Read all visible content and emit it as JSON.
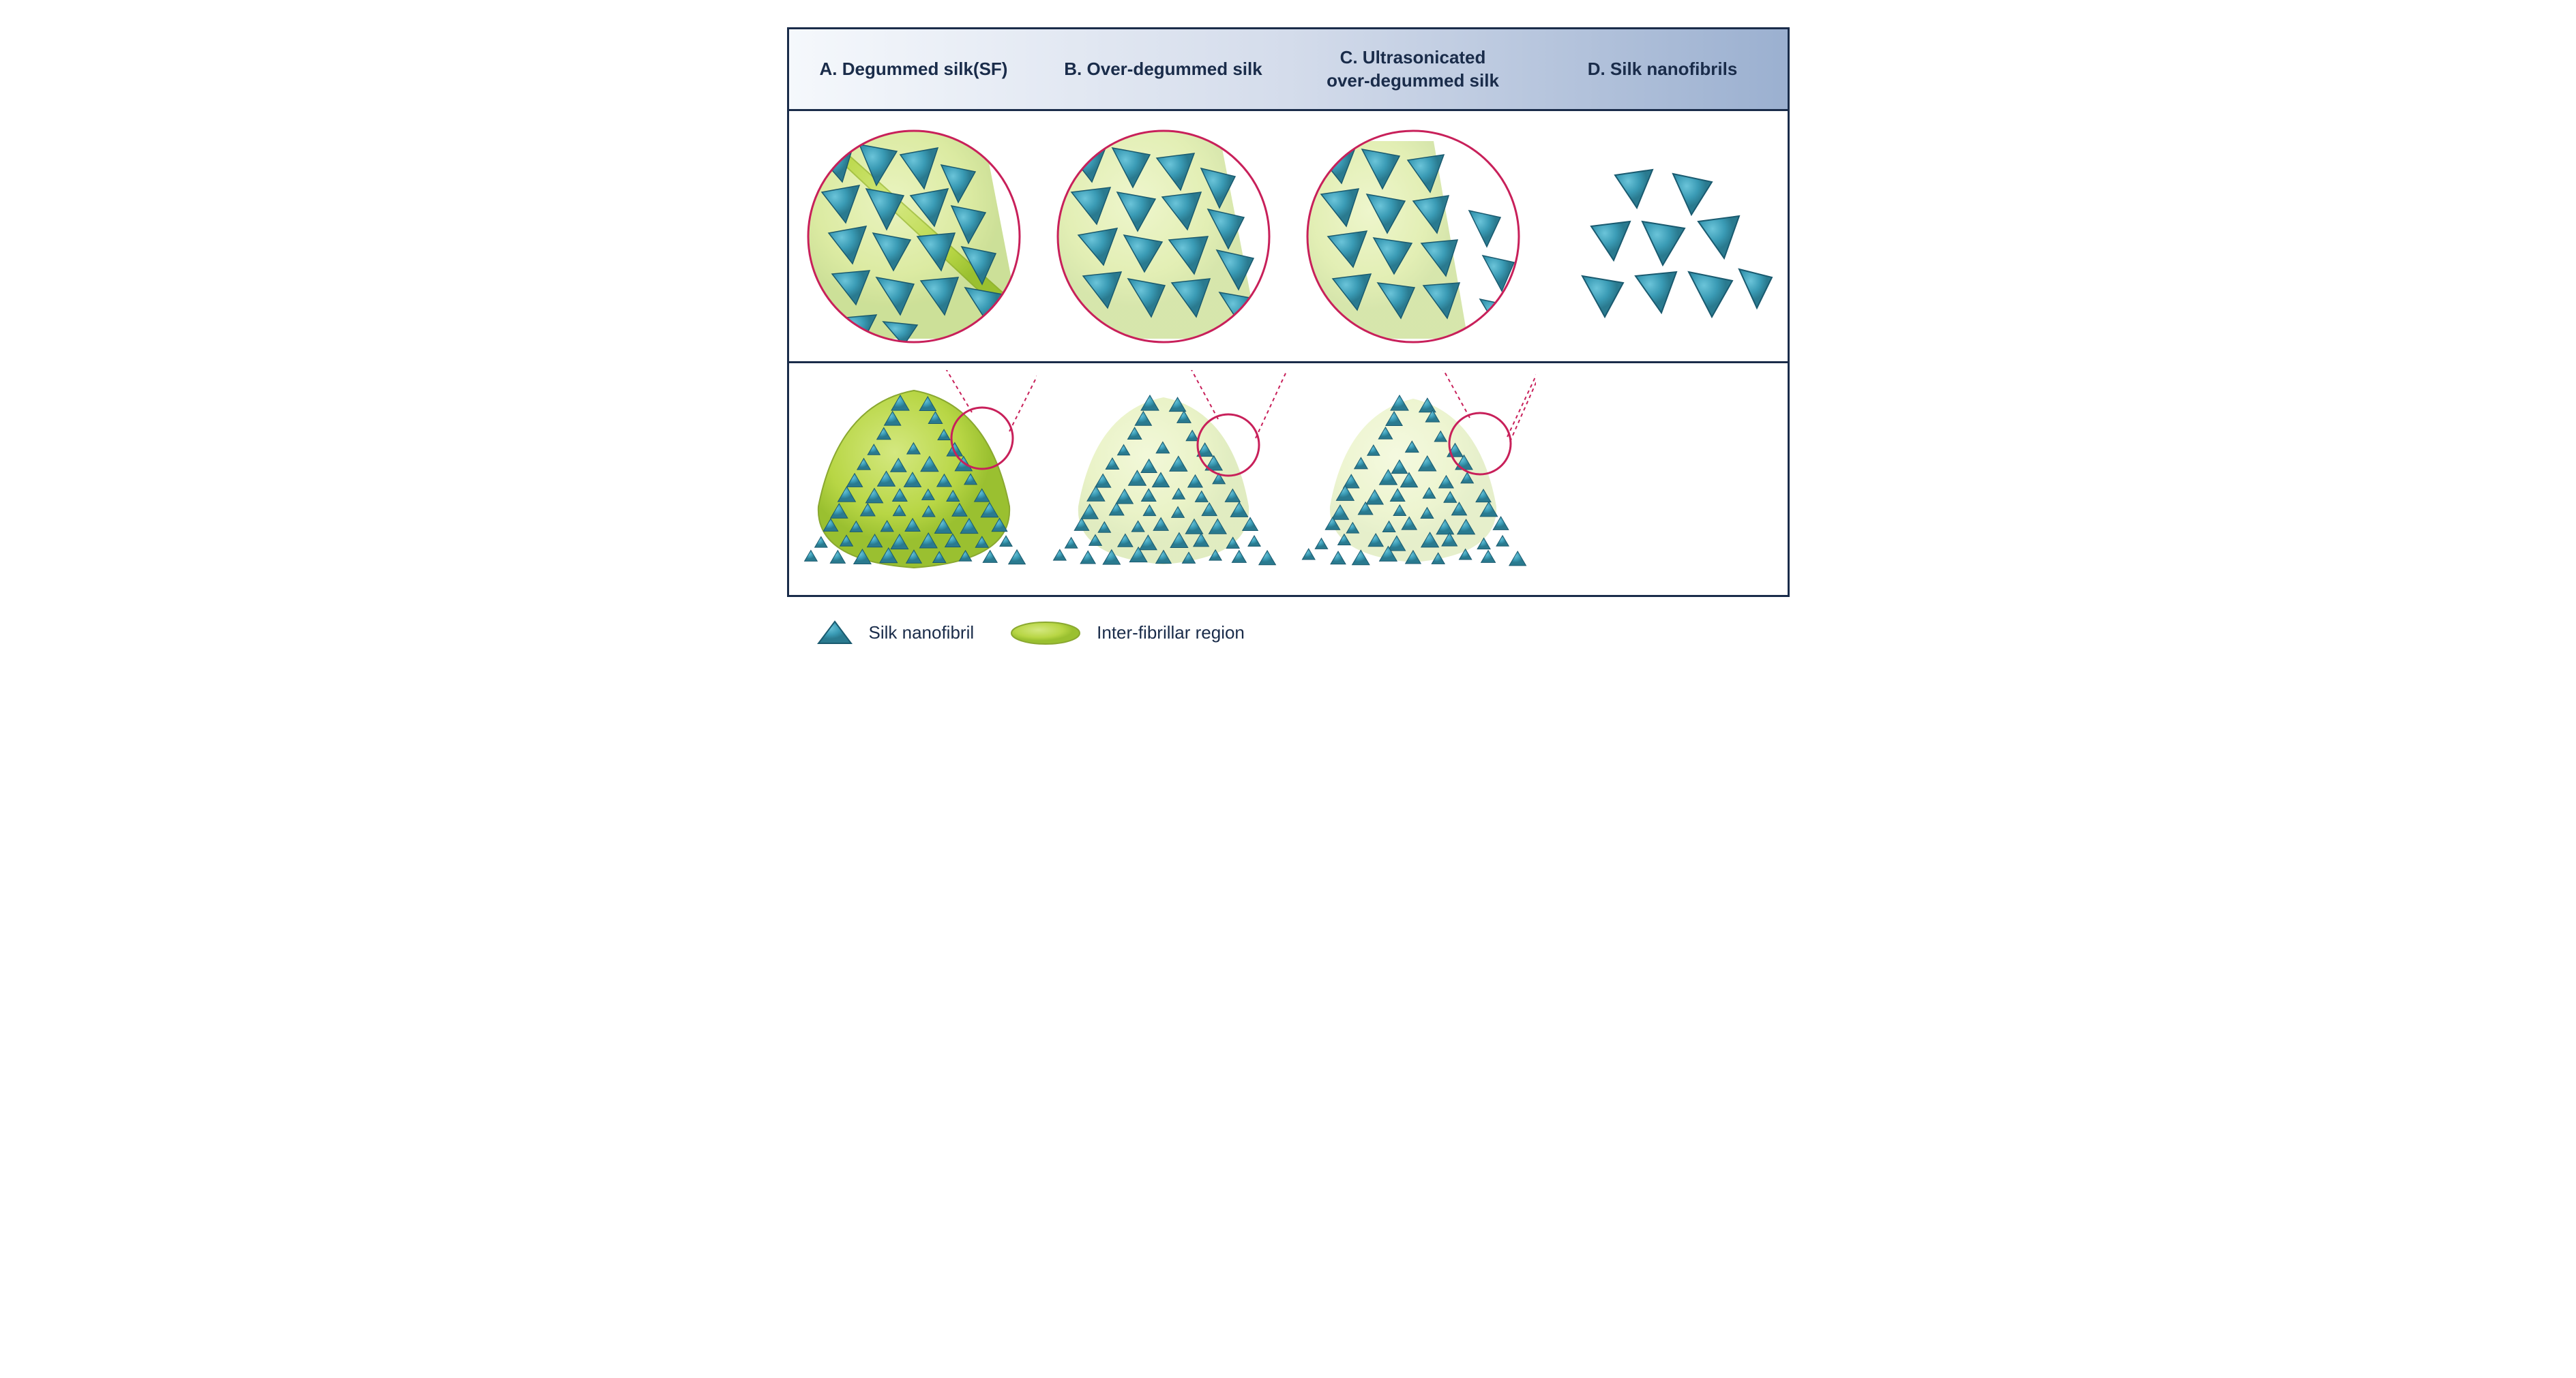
{
  "figure": {
    "border_color": "#1a2c4a",
    "header_gradient_start": "#f5f8fc",
    "header_gradient_mid": "#d4dceb",
    "header_gradient_end": "#9bb0d0",
    "panels": {
      "a": {
        "label": "A.",
        "title": "Degummed silk(SF)"
      },
      "b": {
        "label": "B.",
        "title": "Over-degummed silk"
      },
      "c": {
        "label": "C.",
        "title_line1": "Ultrasonicated",
        "title_line2": "over-degummed silk"
      },
      "d": {
        "label": "D.",
        "title": "Silk nanofibrils"
      }
    },
    "header_fontsize": 26,
    "header_fontweight": "bold",
    "header_color": "#1a2c4a"
  },
  "colors": {
    "nanofibril_fill": "#3a9bb5",
    "nanofibril_fill_light": "#6bc4d9",
    "nanofibril_fill_dark": "#2a7a8f",
    "nanofibril_stroke": "#1a5a6f",
    "interfibrillar_fill": "#b8d645",
    "interfibrillar_fill_light": "#d4e880",
    "interfibrillar_stroke": "#8aa830",
    "magnifier_stroke": "#c8205a",
    "magnifier_stroke_width": 3,
    "connector_dash": "4,4"
  },
  "legend": {
    "items": [
      {
        "key": "nanofibril",
        "label": "Silk nanofibril"
      },
      {
        "key": "interfibrillar",
        "label": "Inter-fibrillar region"
      }
    ],
    "fontsize": 26,
    "color": "#1a2c4a"
  }
}
